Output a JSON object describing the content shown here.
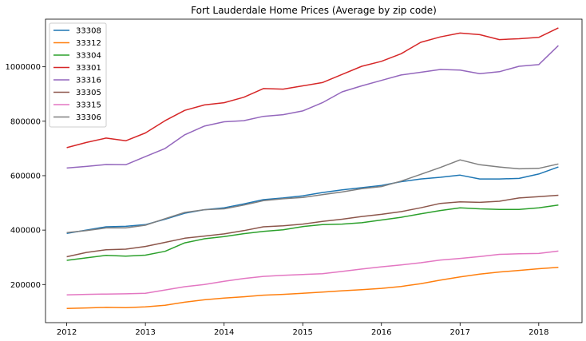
{
  "chart_data": {
    "type": "line",
    "title": "Fort Lauderdale Home Prices (Average by zip code)",
    "xlabel": "",
    "ylabel": "",
    "xlim": [
      2011.73,
      2018.55
    ],
    "ylim": [
      60000,
      1175000
    ],
    "x_ticks": [
      2012,
      2013,
      2014,
      2015,
      2016,
      2017,
      2018
    ],
    "y_ticks": [
      200000,
      400000,
      600000,
      800000,
      1000000
    ],
    "grid": false,
    "legend_position": "top-left",
    "x": [
      2012.0,
      2012.25,
      2012.5,
      2012.75,
      2013.0,
      2013.25,
      2013.5,
      2013.75,
      2014.0,
      2014.25,
      2014.5,
      2014.75,
      2015.0,
      2015.25,
      2015.5,
      2015.75,
      2016.0,
      2016.25,
      2016.5,
      2016.75,
      2017.0,
      2017.25,
      2017.5,
      2017.75,
      2018.0,
      2018.25
    ],
    "series": [
      {
        "name": "33308",
        "color": "#1f77b4",
        "values": [
          388000,
          400000,
          412000,
          414000,
          420000,
          440000,
          462000,
          475000,
          482000,
          496000,
          512000,
          518000,
          526000,
          538000,
          548000,
          556000,
          564000,
          578000,
          588000,
          594000,
          602000,
          588000,
          588000,
          590000,
          606000,
          632000
        ]
      },
      {
        "name": "33312",
        "color": "#ff7f0e",
        "values": [
          112000,
          114000,
          116000,
          115000,
          118000,
          124000,
          135000,
          144000,
          150000,
          155000,
          161000,
          164000,
          168000,
          172000,
          177000,
          181000,
          186000,
          193000,
          203000,
          216000,
          228000,
          238000,
          246000,
          252000,
          258000,
          263000
        ]
      },
      {
        "name": "33304",
        "color": "#2ca02c",
        "values": [
          289000,
          298000,
          307000,
          304000,
          308000,
          322000,
          353000,
          368000,
          376000,
          387000,
          395000,
          401000,
          413000,
          420000,
          422000,
          427000,
          437000,
          447000,
          460000,
          472000,
          482000,
          478000,
          476000,
          476000,
          482000,
          492000
        ]
      },
      {
        "name": "33301",
        "color": "#d62728",
        "values": [
          703000,
          722000,
          738000,
          728000,
          757000,
          802000,
          840000,
          860000,
          868000,
          888000,
          920000,
          918000,
          930000,
          942000,
          972000,
          1002000,
          1020000,
          1048000,
          1090000,
          1110000,
          1124000,
          1118000,
          1100000,
          1103000,
          1108000,
          1143000
        ]
      },
      {
        "name": "33316",
        "color": "#9467bd",
        "values": [
          628000,
          634000,
          641000,
          640000,
          670000,
          700000,
          750000,
          782000,
          798000,
          802000,
          818000,
          824000,
          838000,
          868000,
          908000,
          930000,
          950000,
          970000,
          980000,
          990000,
          988000,
          975000,
          982000,
          1002000,
          1008000,
          1078000
        ]
      },
      {
        "name": "33305",
        "color": "#8c564b",
        "values": [
          302000,
          318000,
          328000,
          330000,
          340000,
          355000,
          370000,
          378000,
          386000,
          398000,
          412000,
          416000,
          422000,
          432000,
          440000,
          450000,
          458000,
          468000,
          482000,
          498000,
          504000,
          502000,
          506000,
          518000,
          523000,
          528000
        ]
      },
      {
        "name": "33315",
        "color": "#e377c2",
        "values": [
          162000,
          164000,
          165000,
          166000,
          168000,
          180000,
          192000,
          200000,
          212000,
          222000,
          230000,
          234000,
          237000,
          240000,
          248000,
          257000,
          265000,
          272000,
          280000,
          290000,
          296000,
          303000,
          311000,
          313000,
          314000,
          323000
        ]
      },
      {
        "name": "33306",
        "color": "#7f7f7f",
        "values": [
          391000,
          398000,
          408000,
          408000,
          418000,
          442000,
          465000,
          475000,
          478000,
          492000,
          508000,
          515000,
          520000,
          530000,
          540000,
          552000,
          560000,
          580000,
          605000,
          630000,
          658000,
          640000,
          632000,
          625000,
          627000,
          643000
        ]
      }
    ]
  }
}
